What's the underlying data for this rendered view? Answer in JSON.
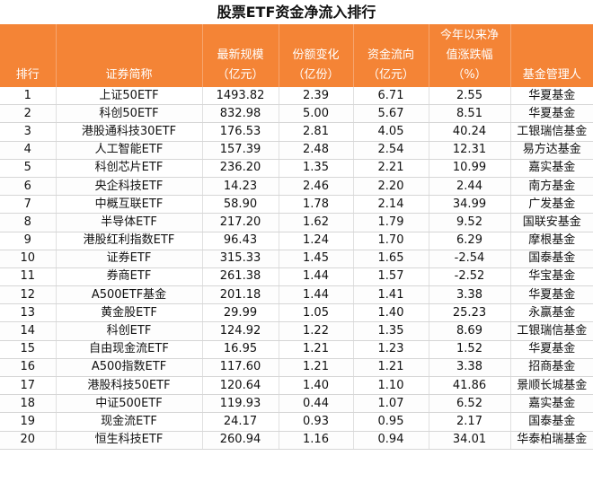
{
  "title": "股票ETF资金净流入排行",
  "headers": {
    "rank": "排行",
    "name": "证券简称",
    "size_l1": "最新规模",
    "size_l2": "（亿元）",
    "share_l1": "份额变化",
    "share_l2": "（亿份）",
    "flow_l1": "资金流向",
    "flow_l2": "（亿元）",
    "ytd_l1": "今年以来净",
    "ytd_l2": "值涨跌幅",
    "ytd_l3": "（%）",
    "manager": "基金管理人"
  },
  "rows": [
    {
      "rank": "1",
      "name": "上证50ETF",
      "size": "1493.82",
      "share": "2.39",
      "flow": "6.71",
      "ytd": "2.55",
      "manager": "华夏基金"
    },
    {
      "rank": "2",
      "name": "科创50ETF",
      "size": "832.98",
      "share": "5.00",
      "flow": "5.67",
      "ytd": "8.51",
      "manager": "华夏基金"
    },
    {
      "rank": "3",
      "name": "港股通科技30ETF",
      "size": "176.53",
      "share": "2.81",
      "flow": "4.05",
      "ytd": "40.24",
      "manager": "工银瑞信基金"
    },
    {
      "rank": "4",
      "name": "人工智能ETF",
      "size": "157.39",
      "share": "2.48",
      "flow": "2.54",
      "ytd": "12.31",
      "manager": "易方达基金"
    },
    {
      "rank": "5",
      "name": "科创芯片ETF",
      "size": "236.20",
      "share": "1.35",
      "flow": "2.21",
      "ytd": "10.99",
      "manager": "嘉实基金"
    },
    {
      "rank": "6",
      "name": "央企科技ETF",
      "size": "14.23",
      "share": "2.46",
      "flow": "2.20",
      "ytd": "2.44",
      "manager": "南方基金"
    },
    {
      "rank": "7",
      "name": "中概互联ETF",
      "size": "58.90",
      "share": "1.78",
      "flow": "2.14",
      "ytd": "34.99",
      "manager": "广发基金"
    },
    {
      "rank": "8",
      "name": "半导体ETF",
      "size": "217.20",
      "share": "1.62",
      "flow": "1.79",
      "ytd": "9.52",
      "manager": "国联安基金"
    },
    {
      "rank": "9",
      "name": "港股红利指数ETF",
      "size": "96.43",
      "share": "1.24",
      "flow": "1.70",
      "ytd": "6.29",
      "manager": "摩根基金"
    },
    {
      "rank": "10",
      "name": "证券ETF",
      "size": "315.33",
      "share": "1.45",
      "flow": "1.65",
      "ytd": "-2.54",
      "manager": "国泰基金"
    },
    {
      "rank": "11",
      "name": "券商ETF",
      "size": "261.38",
      "share": "1.44",
      "flow": "1.57",
      "ytd": "-2.52",
      "manager": "华宝基金"
    },
    {
      "rank": "12",
      "name": "A500ETF基金",
      "size": "201.18",
      "share": "1.44",
      "flow": "1.41",
      "ytd": "3.38",
      "manager": "华夏基金"
    },
    {
      "rank": "13",
      "name": "黄金股ETF",
      "size": "29.99",
      "share": "1.05",
      "flow": "1.40",
      "ytd": "25.23",
      "manager": "永赢基金"
    },
    {
      "rank": "14",
      "name": "科创ETF",
      "size": "124.92",
      "share": "1.22",
      "flow": "1.35",
      "ytd": "8.69",
      "manager": "工银瑞信基金"
    },
    {
      "rank": "15",
      "name": "自由现金流ETF",
      "size": "16.95",
      "share": "1.21",
      "flow": "1.23",
      "ytd": "1.52",
      "manager": "华夏基金"
    },
    {
      "rank": "16",
      "name": "A500指数ETF",
      "size": "117.60",
      "share": "1.21",
      "flow": "1.21",
      "ytd": "3.38",
      "manager": "招商基金"
    },
    {
      "rank": "17",
      "name": "港股科技50ETF",
      "size": "120.64",
      "share": "1.40",
      "flow": "1.10",
      "ytd": "41.86",
      "manager": "景顺长城基金"
    },
    {
      "rank": "18",
      "name": "中证500ETF",
      "size": "119.93",
      "share": "0.44",
      "flow": "1.07",
      "ytd": "6.52",
      "manager": "嘉实基金"
    },
    {
      "rank": "19",
      "name": "现金流ETF",
      "size": "24.17",
      "share": "0.93",
      "flow": "0.95",
      "ytd": "2.17",
      "manager": "国泰基金"
    },
    {
      "rank": "20",
      "name": "恒生科技ETF",
      "size": "260.94",
      "share": "1.16",
      "flow": "0.94",
      "ytd": "34.01",
      "manager": "华泰柏瑞基金"
    }
  ]
}
